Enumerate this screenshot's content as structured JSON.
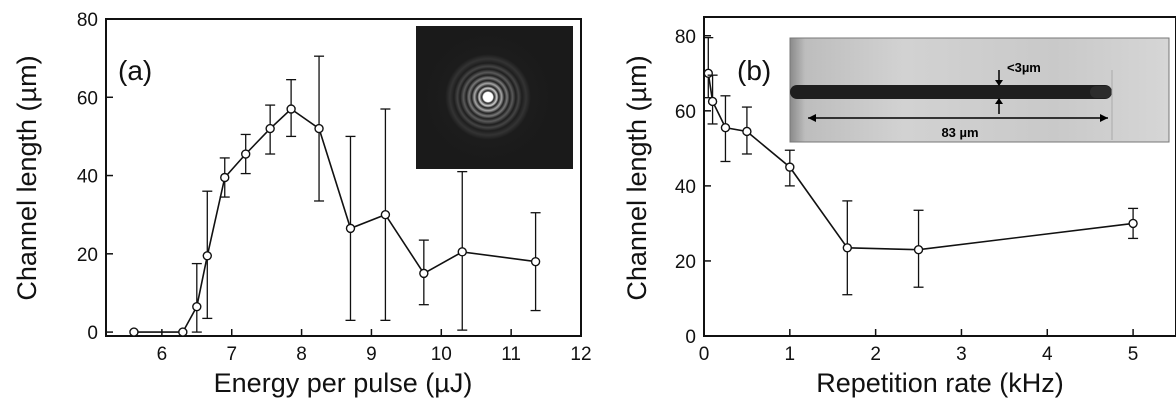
{
  "chart_data": [
    {
      "type": "line",
      "panel_label": "(a)",
      "xlabel": "Energy per pulse (µJ)",
      "ylabel": "Channel length (µm)",
      "xlim": [
        5.2,
        12
      ],
      "ylim": [
        -1,
        80
      ],
      "xticks": [
        6,
        7,
        8,
        9,
        10,
        11,
        12
      ],
      "xticklabels": [
        "6",
        "7",
        "8",
        "9",
        "10",
        "11",
        "12"
      ],
      "yticks": [
        0,
        20,
        40,
        60,
        80
      ],
      "yticklabels": [
        "0",
        "20",
        "40",
        "60",
        "80"
      ],
      "grid": false,
      "legend": "none",
      "inset": "concentric ring diffraction pattern (top-right)",
      "series": [
        {
          "x": [
            5.6,
            6.3,
            6.5,
            6.65,
            6.9,
            7.2,
            7.55,
            7.85,
            8.25,
            8.7,
            9.2,
            9.75,
            10.3,
            11.35
          ],
          "y": [
            0,
            0,
            6.5,
            19.5,
            39.5,
            45.5,
            52,
            57,
            52,
            26.5,
            30,
            15,
            20.5,
            18
          ],
          "err_low": [
            0,
            0,
            6.5,
            16,
            5,
            5,
            6.5,
            7,
            18.5,
            23.5,
            27,
            8,
            20,
            12.5
          ],
          "err_high": [
            0,
            0,
            11,
            16.5,
            5,
            5,
            6,
            7.5,
            18.5,
            23.5,
            27,
            8.5,
            20.5,
            12.5
          ]
        }
      ]
    },
    {
      "type": "line",
      "panel_label": "(b)",
      "xlabel": "Repetition rate (kHz)",
      "ylabel": "Channel length (µm)",
      "xlim": [
        0,
        5.5
      ],
      "ylim": [
        0,
        85
      ],
      "xticks": [
        0,
        1,
        2,
        3,
        4,
        5
      ],
      "xticklabels": [
        "0",
        "1",
        "2",
        "3",
        "4",
        "5"
      ],
      "yticks": [
        0,
        20,
        40,
        60,
        80
      ],
      "yticklabels": [
        "0",
        "20",
        "40",
        "60",
        "80"
      ],
      "grid": false,
      "legend": "none",
      "inset": "microscope image of channel (top)",
      "inset_annotations": [
        "<3µm",
        "83 µm"
      ],
      "series": [
        {
          "x": [
            0.05,
            0.1,
            0.25,
            0.5,
            1.0,
            1.67,
            2.5,
            5.0
          ],
          "y": [
            70,
            62.5,
            55.5,
            54.5,
            45,
            23.5,
            23,
            30
          ],
          "err_low": [
            6.5,
            6,
            9,
            6,
            5,
            12.5,
            10,
            4
          ],
          "err_high": [
            9.5,
            7,
            8.5,
            6.5,
            4.5,
            12.5,
            10.5,
            4
          ]
        }
      ]
    }
  ]
}
